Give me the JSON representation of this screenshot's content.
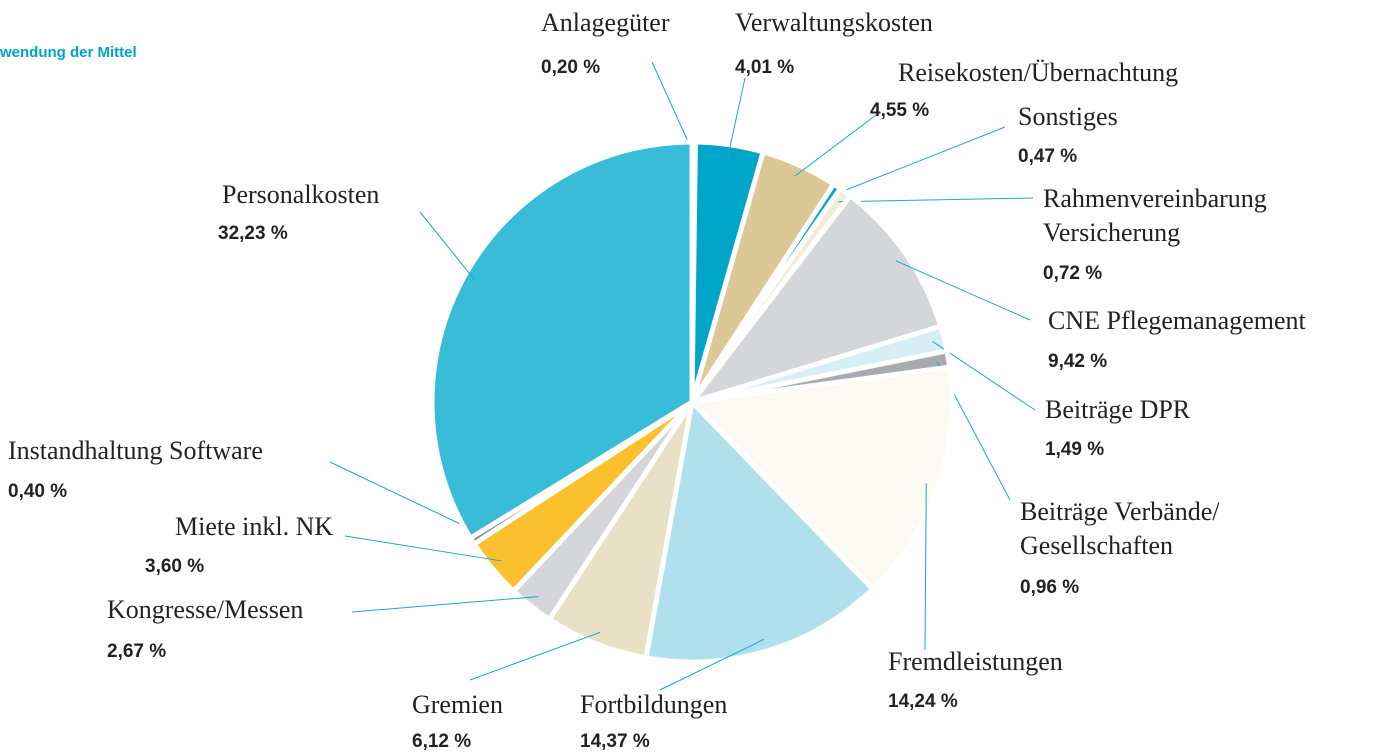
{
  "chart_data": {
    "type": "pie",
    "title": "wendung der Mittel",
    "categories": [
      "Anlagegüter",
      "Verwaltungskosten",
      "Reisekosten/Übernachtung",
      "Sonstiges",
      "Rahmenvereinbarung\nVersicherung",
      "CNE Pflegemanagement",
      "Beiträge DPR",
      "Beiträge Verbände/\nGesellschaften",
      "Fremdleistungen",
      "Fortbildungen",
      "Gremien",
      "Kongresse/Messen",
      "Miete inkl. NK",
      "Instandhaltung Software",
      "Personalkosten"
    ],
    "values": [
      0.2,
      4.01,
      4.55,
      0.47,
      0.72,
      9.42,
      1.49,
      0.96,
      14.24,
      14.37,
      6.12,
      2.67,
      3.6,
      0.4,
      32.23
    ],
    "value_labels": [
      "0,20 %",
      "4,01 %",
      "4,55 %",
      "0,47 %",
      "0,72 %",
      "9,42 %",
      "1,49 %",
      "0,96 %",
      "14,24 %",
      "14,37 %",
      "6,12 %",
      "2,67 %",
      "3,60 %",
      "0,40 %",
      "32,23 %"
    ],
    "colors": [
      "#f3ecdc",
      "#00a5c8",
      "#dcc896",
      "#00a5c8",
      "#f3ecdc",
      "#d4d6d9",
      "#d6eef5",
      "#a8aab0",
      "#fbf9f1",
      "#b0dfee",
      "#e8e1c5",
      "#d4d6d9",
      "#fbc02d",
      "#7a7d80",
      "#39bcd8"
    ]
  }
}
